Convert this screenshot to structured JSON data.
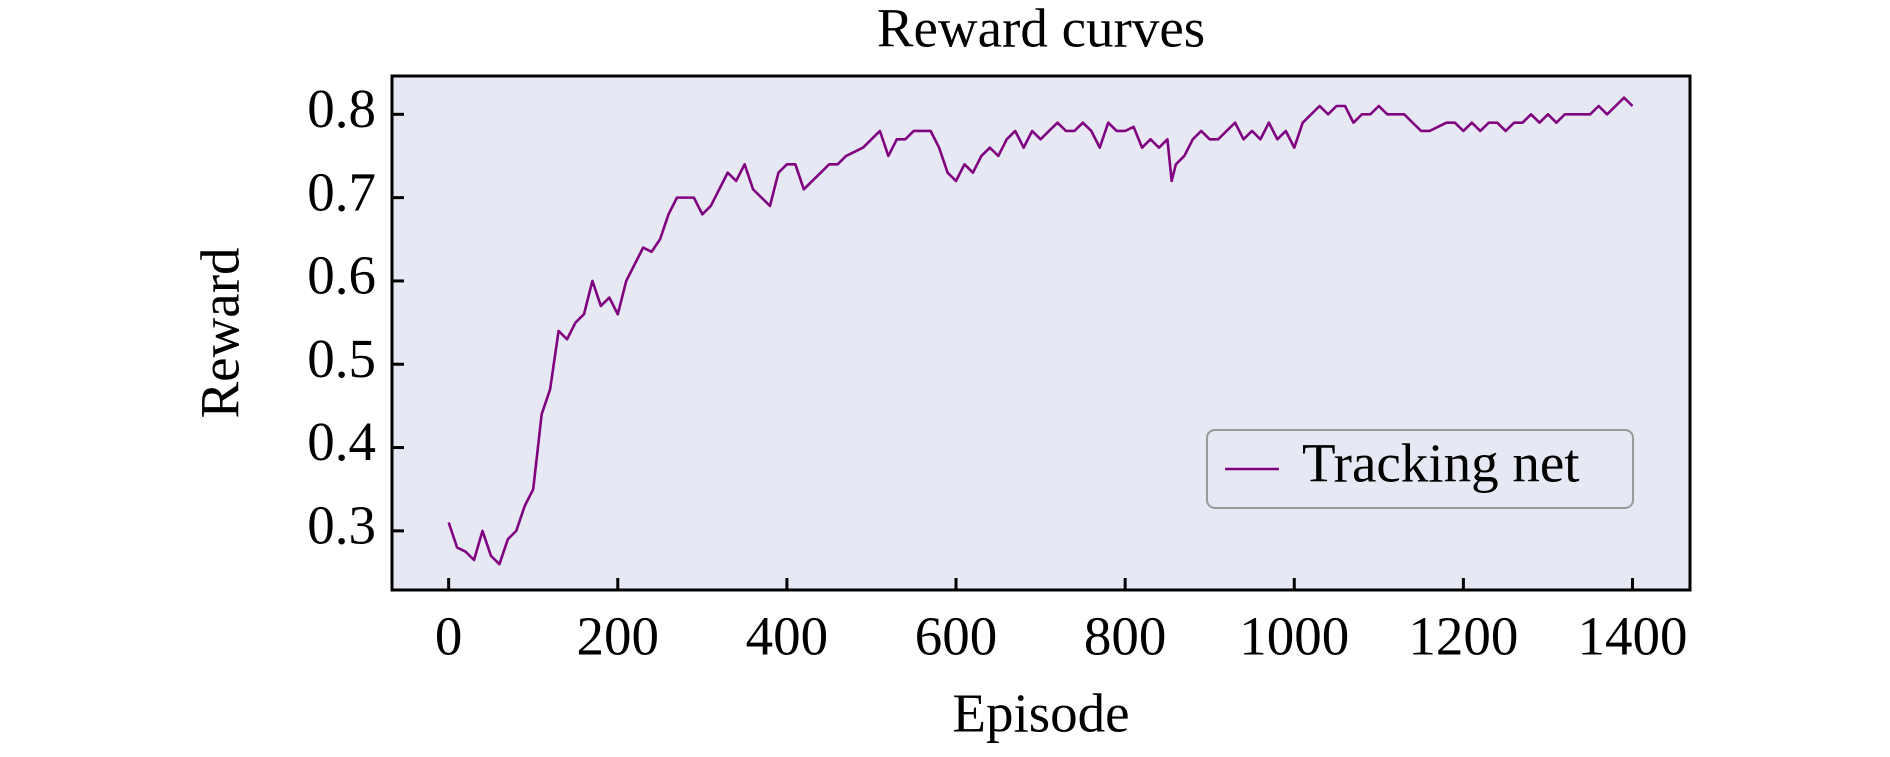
{
  "chart_data": {
    "type": "line",
    "title": "Reward curves",
    "x_label": "Episode",
    "y_label": "Reward",
    "x": [
      0,
      10,
      20,
      30,
      40,
      50,
      60,
      70,
      80,
      90,
      100,
      110,
      120,
      130,
      140,
      150,
      160,
      170,
      180,
      190,
      200,
      210,
      220,
      230,
      240,
      250,
      260,
      270,
      280,
      290,
      300,
      310,
      320,
      330,
      340,
      350,
      360,
      370,
      380,
      390,
      400,
      410,
      420,
      430,
      440,
      450,
      460,
      470,
      480,
      490,
      500,
      510,
      520,
      530,
      540,
      550,
      560,
      570,
      580,
      590,
      600,
      610,
      620,
      630,
      640,
      650,
      660,
      670,
      680,
      690,
      700,
      710,
      720,
      730,
      740,
      750,
      760,
      770,
      780,
      790,
      800,
      810,
      820,
      830,
      840,
      850,
      855,
      860,
      870,
      880,
      890,
      900,
      910,
      920,
      930,
      940,
      950,
      960,
      970,
      980,
      990,
      1000,
      1010,
      1020,
      1030,
      1040,
      1050,
      1060,
      1070,
      1080,
      1090,
      1100,
      1110,
      1120,
      1130,
      1140,
      1150,
      1160,
      1170,
      1180,
      1190,
      1200,
      1210,
      1220,
      1230,
      1240,
      1250,
      1260,
      1270,
      1280,
      1290,
      1300,
      1310,
      1320,
      1330,
      1340,
      1350,
      1360,
      1370,
      1380,
      1390,
      1400
    ],
    "series": [
      {
        "name": "Tracking net",
        "color": "#800080",
        "values": [
          0.31,
          0.28,
          0.275,
          0.265,
          0.3,
          0.27,
          0.26,
          0.29,
          0.3,
          0.33,
          0.35,
          0.44,
          0.47,
          0.54,
          0.53,
          0.55,
          0.56,
          0.6,
          0.57,
          0.58,
          0.56,
          0.6,
          0.62,
          0.64,
          0.635,
          0.65,
          0.68,
          0.7,
          0.7,
          0.7,
          0.68,
          0.69,
          0.71,
          0.73,
          0.72,
          0.74,
          0.71,
          0.7,
          0.69,
          0.73,
          0.74,
          0.74,
          0.71,
          0.72,
          0.73,
          0.74,
          0.74,
          0.75,
          0.755,
          0.76,
          0.77,
          0.78,
          0.75,
          0.77,
          0.77,
          0.78,
          0.78,
          0.78,
          0.76,
          0.73,
          0.72,
          0.74,
          0.73,
          0.75,
          0.76,
          0.75,
          0.77,
          0.78,
          0.76,
          0.78,
          0.77,
          0.78,
          0.79,
          0.78,
          0.78,
          0.79,
          0.78,
          0.76,
          0.79,
          0.78,
          0.78,
          0.785,
          0.76,
          0.77,
          0.76,
          0.77,
          0.72,
          0.74,
          0.75,
          0.77,
          0.78,
          0.77,
          0.77,
          0.78,
          0.79,
          0.77,
          0.78,
          0.77,
          0.79,
          0.77,
          0.78,
          0.76,
          0.79,
          0.8,
          0.81,
          0.8,
          0.81,
          0.81,
          0.79,
          0.8,
          0.8,
          0.81,
          0.8,
          0.8,
          0.8,
          0.79,
          0.78,
          0.78,
          0.785,
          0.79,
          0.79,
          0.78,
          0.79,
          0.78,
          0.79,
          0.79,
          0.78,
          0.79,
          0.79,
          0.8,
          0.79,
          0.8,
          0.79,
          0.8,
          0.8,
          0.8,
          0.8,
          0.81,
          0.8,
          0.81,
          0.82,
          0.81
        ]
      }
    ],
    "xlim": [
      -67,
      1468
    ],
    "xticks": [
      0,
      200,
      400,
      600,
      800,
      1000,
      1200,
      1400
    ],
    "ylim": [
      0.229,
      0.846
    ],
    "yticks": [
      0.3,
      0.4,
      0.5,
      0.6,
      0.7,
      0.8
    ],
    "legend_loc": "lower right",
    "background": "#e6e9f3"
  }
}
